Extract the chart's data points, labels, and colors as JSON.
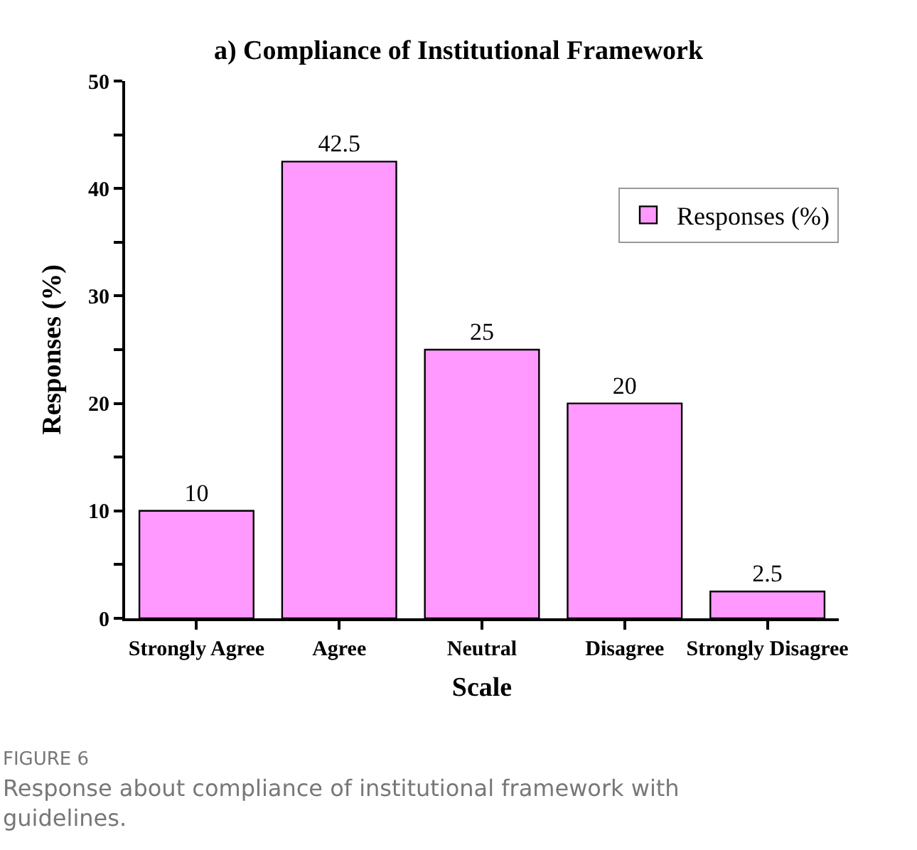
{
  "chart_data": {
    "type": "bar",
    "title": "a) Compliance of Institutional Framework",
    "xlabel": "Scale",
    "ylabel": "Responses (%)",
    "categories": [
      "Strongly Agree",
      "Agree",
      "Neutral",
      "Disagree",
      "Strongly Disagree"
    ],
    "series": [
      {
        "name": "Responses (%)",
        "color": "#ff99ff",
        "values": [
          10,
          42.5,
          25,
          20,
          2.5
        ]
      }
    ],
    "data_labels": true,
    "ylim": [
      0,
      50
    ],
    "yticks": [
      0,
      {
        "value": 5,
        "label": null
      },
      10,
      {
        "value": 15,
        "label": null
      },
      20,
      {
        "value": 25,
        "label": null
      },
      30,
      {
        "value": 35,
        "label": null
      },
      40,
      {
        "value": 45,
        "label": null
      },
      50
    ],
    "legend": "right",
    "annotations": [
      "FIGURE 6",
      "Response about compliance of institutional framework with guidelines."
    ]
  }
}
